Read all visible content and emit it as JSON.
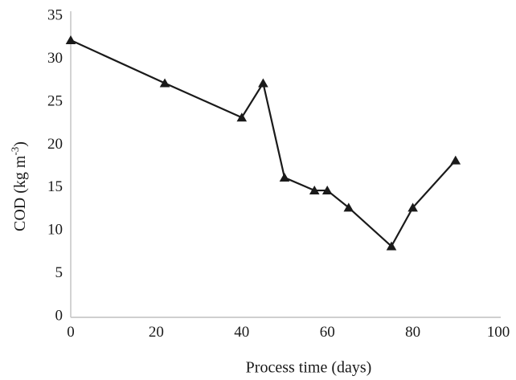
{
  "chart_data": {
    "type": "line",
    "title": "",
    "xlabel": "Process time (days)",
    "ylabel": "COD (kg m-3)",
    "ylabel_parts": {
      "prefix": "COD (kg m",
      "sup": "-3",
      "suffix": ")"
    },
    "x": [
      0,
      22,
      40,
      45,
      50,
      57,
      60,
      65,
      75,
      80,
      90
    ],
    "series": [
      {
        "name": "COD",
        "marker": "triangle-up",
        "color": "#1a1a1a",
        "values": [
          32,
          27,
          23,
          27,
          16,
          14.5,
          14.5,
          12.5,
          8,
          12.5,
          18
        ]
      }
    ],
    "xlim": [
      0,
      100
    ],
    "ylim": [
      0,
      35
    ],
    "x_ticks": [
      0,
      20,
      40,
      60,
      80,
      100
    ],
    "y_ticks": [
      0,
      5,
      10,
      15,
      20,
      25,
      30,
      35
    ],
    "grid": false,
    "legend": false,
    "axis_color": "#c8c8c8",
    "text_color": "#1a1a1a",
    "background_color": "#ffffff"
  }
}
